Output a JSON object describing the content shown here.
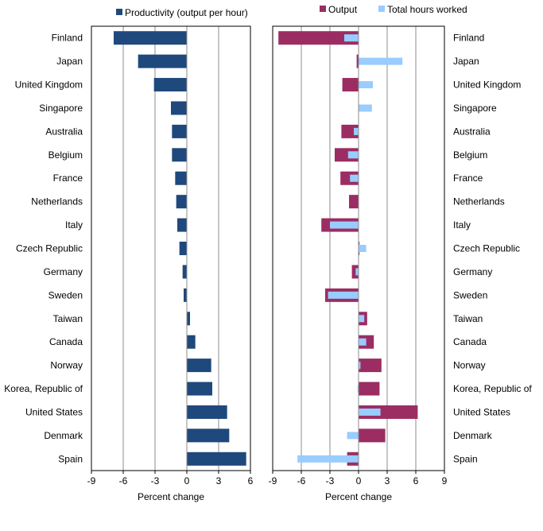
{
  "colors": {
    "productivity": "#1F497D",
    "output": "#9B2D62",
    "hours": "#99CCFF",
    "grid": "#8C8C8C",
    "frame": "#000000",
    "text": "#000000"
  },
  "chart_data": [
    {
      "type": "bar",
      "orientation": "horizontal",
      "categories": [
        "Finland",
        "Japan",
        "United Kingdom",
        "Singapore",
        "Australia",
        "Belgium",
        "France",
        "Netherlands",
        "Italy",
        "Czech Republic",
        "Germany",
        "Sweden",
        "Taiwan",
        "Canada",
        "Norway",
        "Korea, Republic of",
        "United States",
        "Denmark",
        "Spain"
      ],
      "series": [
        {
          "name": "Productivity (output per hour)",
          "values": [
            -6.9,
            -4.6,
            -3.1,
            -1.5,
            -1.4,
            -1.4,
            -1.1,
            -1.0,
            -0.9,
            -0.7,
            -0.4,
            -0.3,
            0.3,
            0.8,
            2.3,
            2.4,
            3.8,
            4.0,
            5.6
          ]
        }
      ],
      "xlabel": "Percent change",
      "xlim": [
        -9,
        6
      ],
      "xticks": [
        -9,
        -6,
        -3,
        0,
        3,
        6
      ],
      "grid": true,
      "legend_position": "top"
    },
    {
      "type": "bar",
      "orientation": "horizontal",
      "overlay": true,
      "categories": [
        "Finland",
        "Japan",
        "United Kingdom",
        "Singapore",
        "Australia",
        "Belgium",
        "France",
        "Netherlands",
        "Italy",
        "Czech Republic",
        "Germany",
        "Sweden",
        "Taiwan",
        "Canada",
        "Norway",
        "Korea, Republic of",
        "United States",
        "Denmark",
        "Spain"
      ],
      "series": [
        {
          "name": "Output",
          "values": [
            -8.4,
            -0.2,
            -1.7,
            0.0,
            -1.8,
            -2.5,
            -1.9,
            -1.0,
            -3.9,
            0.1,
            -0.7,
            -3.5,
            0.9,
            1.6,
            2.4,
            2.2,
            6.2,
            2.8,
            -1.2
          ]
        },
        {
          "name": "Total hours worked",
          "values": [
            -1.5,
            4.6,
            1.5,
            1.4,
            -0.5,
            -1.1,
            -0.9,
            0.0,
            -3.0,
            0.8,
            -0.3,
            -3.2,
            0.6,
            0.8,
            0.2,
            -0.1,
            2.3,
            -1.2,
            -6.4
          ]
        }
      ],
      "xlabel": "Percent change",
      "xlim": [
        -9,
        9
      ],
      "xticks": [
        -9,
        -6,
        -3,
        0,
        3,
        6,
        9
      ],
      "grid": true,
      "legend_position": "top"
    }
  ]
}
